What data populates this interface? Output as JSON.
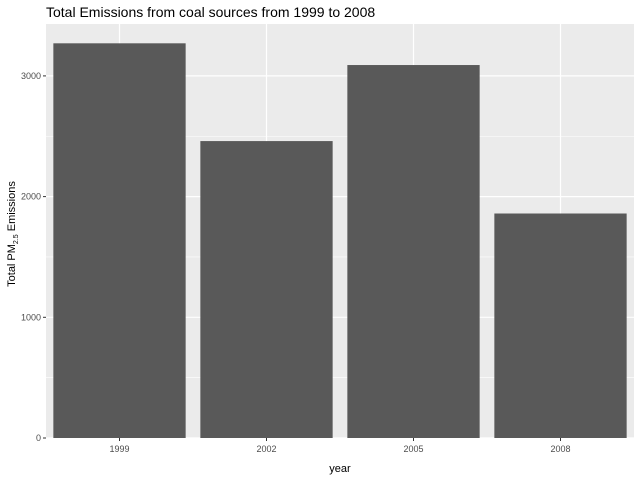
{
  "chart_data": {
    "type": "bar",
    "title": "Total Emissions from coal sources from 1999 to 2008",
    "xlabel": "year",
    "ylabel": {
      "prefix": "Total PM",
      "subscript": "2.5",
      "suffix": " Emissions"
    },
    "categories": [
      "1999",
      "2002",
      "2005",
      "2008"
    ],
    "values": [
      3270,
      2460,
      3090,
      1860
    ],
    "ylim": [
      0,
      3430
    ],
    "yticks": [
      0,
      1000,
      2000,
      3000
    ],
    "ytick_labels": [
      "0",
      "1000",
      "2000",
      "3000"
    ],
    "grid": true,
    "bar_color": "#595959",
    "panel_color": "#ebebeb",
    "grid_color": "#ffffff"
  }
}
